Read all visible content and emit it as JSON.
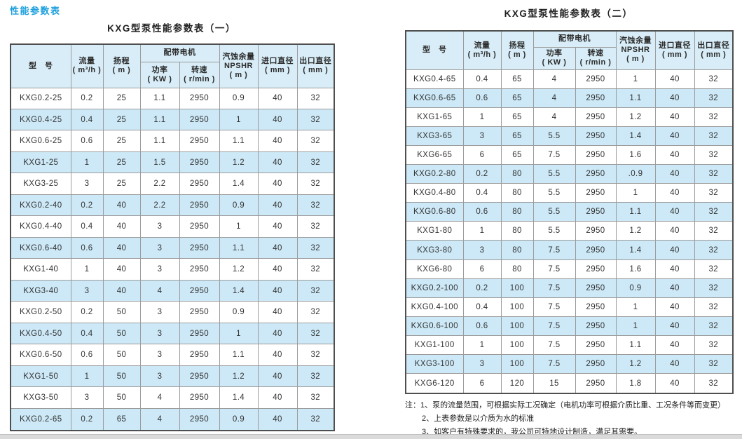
{
  "page": {
    "section_label": "性能参数表",
    "accent_color": "#1a9fdc",
    "header_bg": "#d8edf7",
    "alt_row_bg": "#cde9f7"
  },
  "header": {
    "model": "型　号",
    "flow_l1": "流量",
    "flow_l2": "( m³/h )",
    "head_l1": "扬程",
    "head_l2": "( m )",
    "motor": "配带电机",
    "power_l1": "功率",
    "power_l2": "( KW )",
    "speed_l1": "转速",
    "speed_l2": "( r/min )",
    "npshr_l1": "汽蚀余量",
    "npshr_l2": "NPSHR",
    "npshr_l3": "( m )",
    "inlet_l1": "进口直径",
    "inlet_l2": "( mm )",
    "outlet_l1": "出口直径",
    "outlet_l2": "( mm )"
  },
  "table1": {
    "title": "KXG型泵性能参数表（一）",
    "rows": [
      [
        "KXG0.2-25",
        "0.2",
        "25",
        "1.1",
        "2950",
        "0.9",
        "40",
        "32"
      ],
      [
        "KXG0.4-25",
        "0.4",
        "25",
        "1.1",
        "2950",
        "1",
        "40",
        "32"
      ],
      [
        "KXG0.6-25",
        "0.6",
        "25",
        "1.1",
        "2950",
        "1.1",
        "40",
        "32"
      ],
      [
        "KXG1-25",
        "1",
        "25",
        "1.5",
        "2950",
        "1.2",
        "40",
        "32"
      ],
      [
        "KXG3-25",
        "3",
        "25",
        "2.2",
        "2950",
        "1.4",
        "40",
        "32"
      ],
      [
        "KXG0.2-40",
        "0.2",
        "40",
        "2.2",
        "2950",
        "0.9",
        "40",
        "32"
      ],
      [
        "KXG0.4-40",
        "0.4",
        "40",
        "3",
        "2950",
        "1",
        "40",
        "32"
      ],
      [
        "KXG0.6-40",
        "0.6",
        "40",
        "3",
        "2950",
        "1.1",
        "40",
        "32"
      ],
      [
        "KXG1-40",
        "1",
        "40",
        "3",
        "2950",
        "1.2",
        "40",
        "32"
      ],
      [
        "KXG3-40",
        "3",
        "40",
        "4",
        "2950",
        "1.4",
        "40",
        "32"
      ],
      [
        "KXG0.2-50",
        "0.2",
        "50",
        "3",
        "2950",
        "0.9",
        "40",
        "32"
      ],
      [
        "KXG0.4-50",
        "0.4",
        "50",
        "3",
        "2950",
        "1",
        "40",
        "32"
      ],
      [
        "KXG0.6-50",
        "0.6",
        "50",
        "3",
        "2950",
        "1.1",
        "40",
        "32"
      ],
      [
        "KXG1-50",
        "1",
        "50",
        "3",
        "2950",
        "1.2",
        "40",
        "32"
      ],
      [
        "KXG3-50",
        "3",
        "50",
        "4",
        "2950",
        "1.4",
        "40",
        "32"
      ],
      [
        "KXG0.2-65",
        "0.2",
        "65",
        "4",
        "2950",
        "0.9",
        "40",
        "32"
      ]
    ]
  },
  "table2": {
    "title": "KXG型泵性能参数表（二）",
    "rows": [
      [
        "KXG0.4-65",
        "0.4",
        "65",
        "4",
        "2950",
        "1",
        "40",
        "32"
      ],
      [
        "KXG0.6-65",
        "0.6",
        "65",
        "4",
        "2950",
        "1.1",
        "40",
        "32"
      ],
      [
        "KXG1-65",
        "1",
        "65",
        "4",
        "2950",
        "1.2",
        "40",
        "32"
      ],
      [
        "KXG3-65",
        "3",
        "65",
        "5.5",
        "2950",
        "1.4",
        "40",
        "32"
      ],
      [
        "KXG6-65",
        "6",
        "65",
        "7.5",
        "2950",
        "1.6",
        "40",
        "32"
      ],
      [
        "KXG0.2-80",
        "0.2",
        "80",
        "5.5",
        "2950",
        ".0.9",
        "40",
        "32"
      ],
      [
        "KXG0.4-80",
        "0.4",
        "80",
        "5.5",
        "2950",
        "1",
        "40",
        "32"
      ],
      [
        "KXG0.6-80",
        "0.6",
        "80",
        "5.5",
        "2950",
        "1.1",
        "40",
        "32"
      ],
      [
        "KXG1-80",
        "1",
        "80",
        "5.5",
        "2950",
        "1.2",
        "40",
        "32"
      ],
      [
        "KXG3-80",
        "3",
        "80",
        "7.5",
        "2950",
        "1.4",
        "40",
        "32"
      ],
      [
        "KXG6-80",
        "6",
        "80",
        "7.5",
        "2950",
        "1.6",
        "40",
        "32"
      ],
      [
        "KXG0.2-100",
        "0.2",
        "100",
        "7.5",
        "2950",
        "0.9",
        "40",
        "32"
      ],
      [
        "KXG0.4-100",
        "0.4",
        "100",
        "7.5",
        "2950",
        "1",
        "40",
        "32"
      ],
      [
        "KXG0.6-100",
        "0.6",
        "100",
        "7.5",
        "2950",
        "1",
        "40",
        "32"
      ],
      [
        "KXG1-100",
        "1",
        "100",
        "7.5",
        "2950",
        "1.1",
        "40",
        "32"
      ],
      [
        "KXG3-100",
        "3",
        "100",
        "7.5",
        "2950",
        "1.2",
        "40",
        "32"
      ],
      [
        "KXG6-120",
        "6",
        "120",
        "15",
        "2950",
        "1.8",
        "40",
        "32"
      ]
    ]
  },
  "notes": {
    "prefix": "注：",
    "items": [
      "1、泵的流量范围，可根据实际工况确定（电机功率可根据介质比重、工况条件等而变更）",
      "2、上表参数是以介质为水的标准",
      "3、如客户有特殊要求的，我公司可特地设计制造，满足其需要。"
    ]
  }
}
